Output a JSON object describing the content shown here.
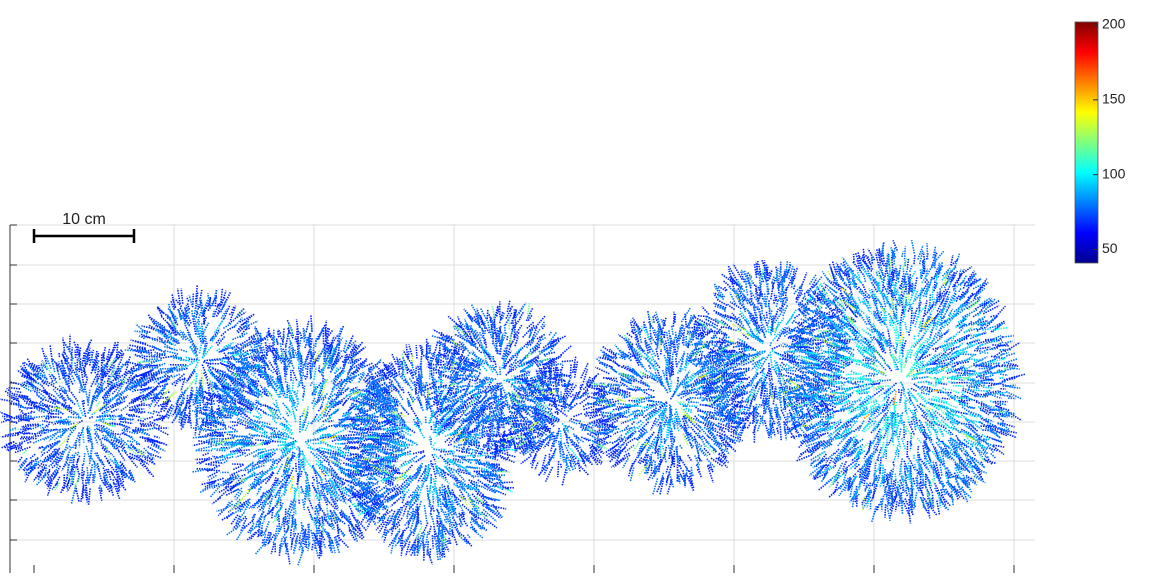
{
  "scale_bar": {
    "label": "10 cm"
  },
  "colorbar": {
    "lim": [
      41,
      202
    ],
    "ticks": [
      50,
      100,
      150,
      200
    ]
  }
}
